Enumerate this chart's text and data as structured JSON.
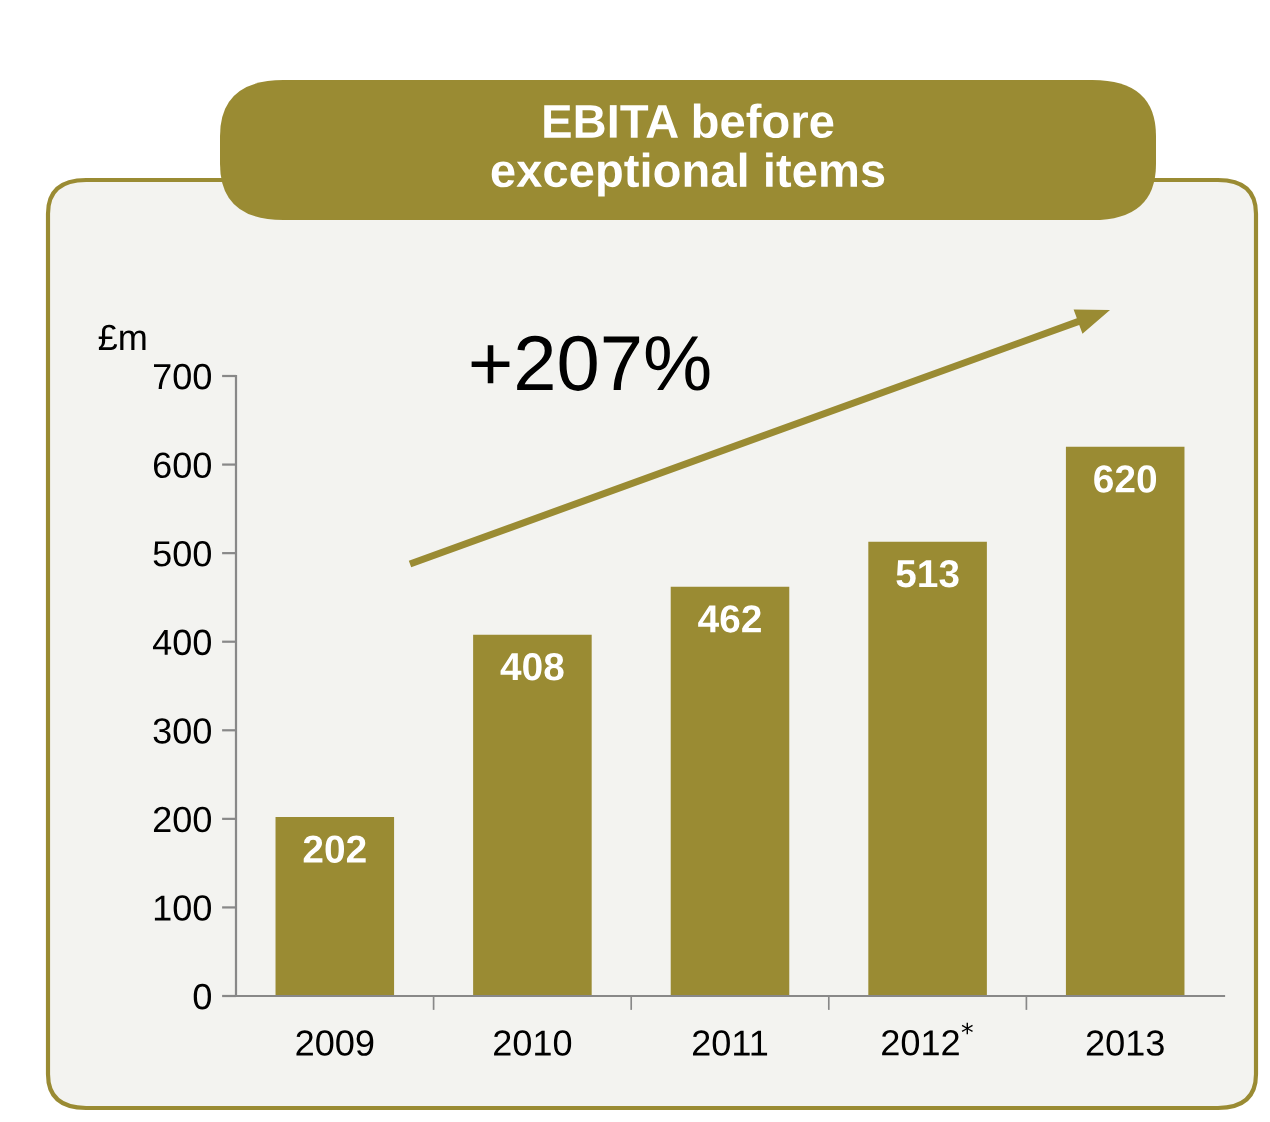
{
  "chart_data": {
    "type": "bar",
    "title": "EBITA before\nexceptional items",
    "ylabel": "£m",
    "categories": [
      "2009",
      "2010",
      "2011",
      "2012$^{*}$",
      "2013"
    ],
    "values": [
      202,
      408,
      462,
      513,
      620
    ],
    "color": "#9a8b33",
    "ylim": [
      0,
      700
    ],
    "yticks": [
      0,
      100,
      200,
      300,
      400,
      500,
      600,
      700
    ],
    "data_labels": true,
    "annotations": [
      "+207%"
    ]
  }
}
